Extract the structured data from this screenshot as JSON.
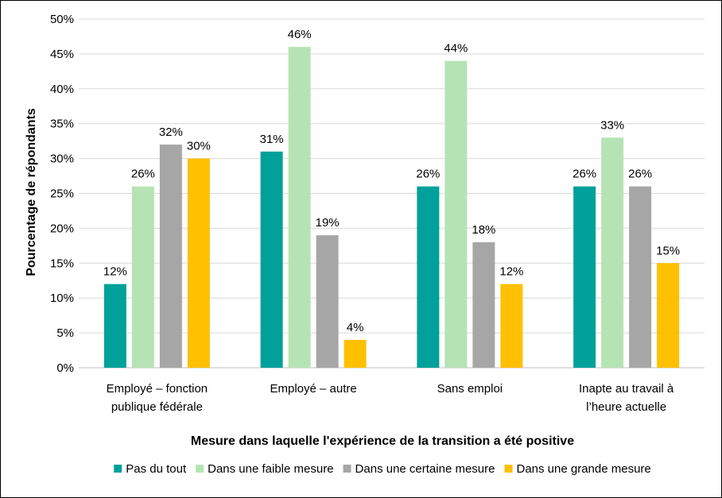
{
  "chart_data": {
    "type": "bar",
    "title": "",
    "xlabel": "Mesure dans laquelle l'expérience de la transition a été positive",
    "ylabel": "Pourcentage de répondants",
    "ylim": [
      0,
      50
    ],
    "ytick_step": 5,
    "ytick_suffix": "%",
    "grid": true,
    "legend_position": "bottom",
    "categories": [
      [
        "Employé – fonction",
        "publique fédérale"
      ],
      [
        "Employé – autre"
      ],
      [
        "Sans emploi"
      ],
      [
        "Inapte au travail à",
        "l’heure actuelle"
      ]
    ],
    "series": [
      {
        "name": "Pas du tout",
        "color": "#00A19A",
        "values": [
          12,
          31,
          26,
          26
        ]
      },
      {
        "name": "Dans une faible mesure",
        "color": "#B6E3B4",
        "values": [
          26,
          46,
          44,
          33
        ]
      },
      {
        "name": "Dans une certaine mesure",
        "color": "#A6A6A6",
        "values": [
          32,
          19,
          18,
          26
        ]
      },
      {
        "name": "Dans une grande mesure",
        "color": "#FFC000",
        "values": [
          30,
          4,
          12,
          15
        ]
      }
    ]
  }
}
